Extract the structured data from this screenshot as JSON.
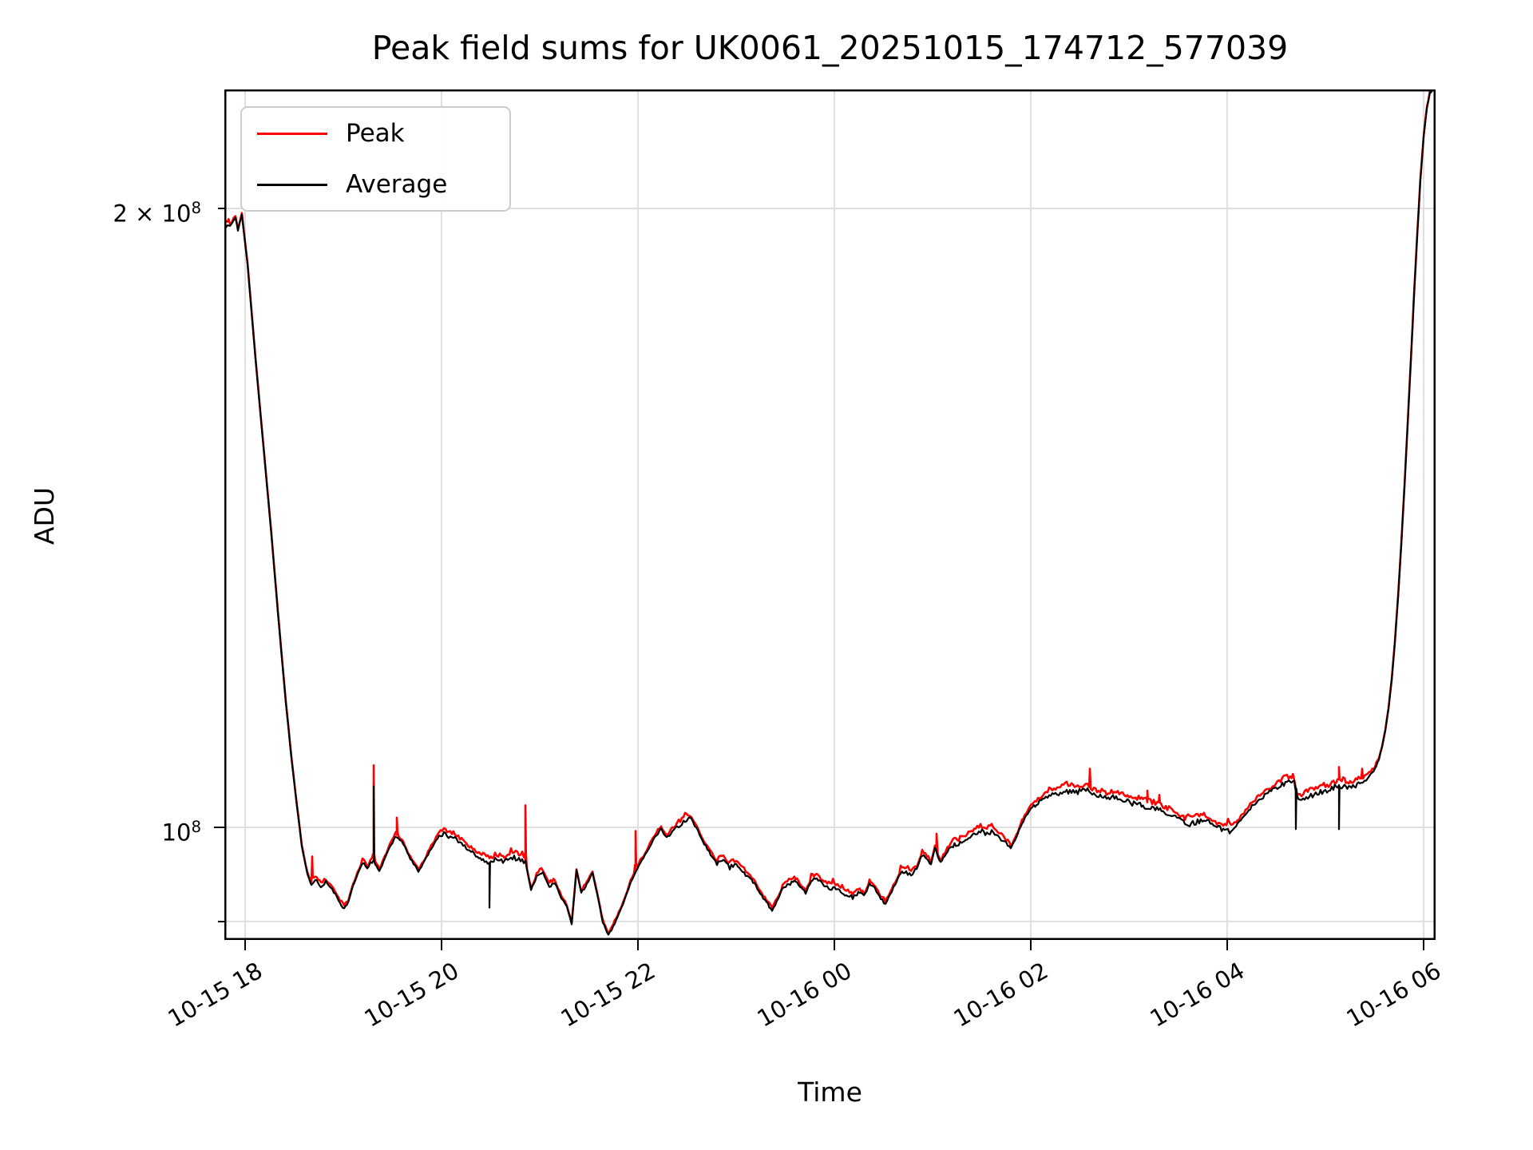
{
  "title": "Peak field sums for UK0061_20251015_174712_577039",
  "axes": {
    "xlabel": "Time",
    "ylabel": "ADU",
    "x_ticks": [
      "10-15 18",
      "10-15 20",
      "10-15 22",
      "10-16 00",
      "10-16 02",
      "10-16 04",
      "10-16 06"
    ],
    "y_ticks": [
      {
        "base": "2 × 10",
        "exp": "8",
        "value": 200000000.0
      },
      {
        "base": "10",
        "exp": "8",
        "value": 100000000.0
      }
    ],
    "y_minor_unlabeled": [
      90000000.0
    ]
  },
  "legend": {
    "items": [
      {
        "label": "Peak",
        "color": "#ff0000"
      },
      {
        "label": "Average",
        "color": "#000000"
      }
    ]
  },
  "colors": {
    "peak": "#ff0000",
    "average": "#000000",
    "grid": "#dcdcdc",
    "spine": "#000000",
    "legend_border": "#cccccc",
    "background": "#ffffff"
  },
  "chart_data": {
    "type": "line",
    "title": "Peak field sums for UK0061_20251015_174712_577039",
    "xlabel": "Time",
    "ylabel": "ADU",
    "yscale": "log",
    "x_unit": "hours since 2025-10-15 18:00",
    "xlim": [
      -0.211,
      12.12
    ],
    "ylim": [
      88000000.0,
      229000000.0
    ],
    "x_tick_hours": [
      0,
      2,
      4,
      6,
      8,
      10,
      12
    ],
    "grid": true,
    "legend_position": "upper left",
    "series": [
      {
        "name": "Peak",
        "color": "#ff0000",
        "relation": "average × ≈1.009 plus isolated spikes"
      },
      {
        "name": "Average",
        "color": "#000000"
      }
    ],
    "average_points": [
      [
        -0.211,
        196200000.0
      ],
      [
        -0.154,
        195900000.0
      ],
      [
        -0.098,
        198000000.0
      ],
      [
        -0.073,
        195200000.0
      ],
      [
        -0.033,
        198700000.0
      ],
      [
        0.024,
        188000000.0
      ],
      [
        0.106,
        169000000.0
      ],
      [
        0.187,
        153100000.0
      ],
      [
        0.268,
        138700000.0
      ],
      [
        0.35,
        124600000.0
      ],
      [
        0.415,
        115000000.0
      ],
      [
        0.472,
        108000000.0
      ],
      [
        0.528,
        102400000.0
      ],
      [
        0.577,
        97900000.0
      ],
      [
        0.634,
        94900000.0
      ],
      [
        0.675,
        93800000.0
      ],
      [
        0.715,
        94300000.0
      ],
      [
        0.772,
        93600000.0
      ],
      [
        0.821,
        94100000.0
      ],
      [
        0.87,
        93400000.0
      ],
      [
        0.919,
        92800000.0
      ],
      [
        0.967,
        91900000.0
      ],
      [
        1.008,
        91300000.0
      ],
      [
        1.049,
        91900000.0
      ],
      [
        1.098,
        93600000.0
      ],
      [
        1.146,
        94900000.0
      ],
      [
        1.195,
        96100000.0
      ],
      [
        1.244,
        95500000.0
      ],
      [
        1.276,
        96000000.0
      ],
      [
        1.309,
        96300000.0
      ],
      [
        1.366,
        95200000.0
      ],
      [
        1.423,
        96600000.0
      ],
      [
        1.472,
        97800000.0
      ],
      [
        1.528,
        98900000.0
      ],
      [
        1.61,
        98200000.0
      ],
      [
        1.667,
        96800000.0
      ],
      [
        1.715,
        96000000.0
      ],
      [
        1.764,
        95100000.0
      ],
      [
        1.829,
        96300000.0
      ],
      [
        1.894,
        97700000.0
      ],
      [
        1.959,
        98800000.0
      ],
      [
        2.024,
        99300000.0
      ],
      [
        2.089,
        98900000.0
      ],
      [
        2.154,
        98600000.0
      ],
      [
        2.22,
        98100000.0
      ],
      [
        2.301,
        97300000.0
      ],
      [
        2.366,
        96800000.0
      ],
      [
        2.423,
        96300000.0
      ],
      [
        2.488,
        96100000.0
      ],
      [
        2.545,
        96500000.0
      ],
      [
        2.626,
        96200000.0
      ],
      [
        2.707,
        96800000.0
      ],
      [
        2.789,
        96500000.0
      ],
      [
        2.854,
        96300000.0
      ],
      [
        2.911,
        93200000.0
      ],
      [
        2.968,
        94600000.0
      ],
      [
        3.033,
        95000000.0
      ],
      [
        3.098,
        93600000.0
      ],
      [
        3.154,
        94000000.0
      ],
      [
        3.22,
        92400000.0
      ],
      [
        3.276,
        91500000.0
      ],
      [
        3.325,
        89700000.0
      ],
      [
        3.374,
        95300000.0
      ],
      [
        3.423,
        92900000.0
      ],
      [
        3.48,
        93800000.0
      ],
      [
        3.537,
        95000000.0
      ],
      [
        3.585,
        92800000.0
      ],
      [
        3.642,
        89900000.0
      ],
      [
        3.699,
        88600000.0
      ],
      [
        3.748,
        89500000.0
      ],
      [
        3.805,
        90700000.0
      ],
      [
        3.862,
        92100000.0
      ],
      [
        3.927,
        94000000.0
      ],
      [
        3.992,
        95500000.0
      ],
      [
        4.057,
        96600000.0
      ],
      [
        4.122,
        97900000.0
      ],
      [
        4.187,
        99100000.0
      ],
      [
        4.236,
        99800000.0
      ],
      [
        4.293,
        98800000.0
      ],
      [
        4.35,
        99500000.0
      ],
      [
        4.415,
        100200000.0
      ],
      [
        4.48,
        100700000.0
      ],
      [
        4.545,
        100900000.0
      ],
      [
        4.61,
        99600000.0
      ],
      [
        4.675,
        98200000.0
      ],
      [
        4.74,
        97000000.0
      ],
      [
        4.805,
        96000000.0
      ],
      [
        4.87,
        96500000.0
      ],
      [
        4.935,
        95600000.0
      ],
      [
        5.0,
        96000000.0
      ],
      [
        5.065,
        95100000.0
      ],
      [
        5.13,
        94600000.0
      ],
      [
        5.187,
        93900000.0
      ],
      [
        5.244,
        92900000.0
      ],
      [
        5.309,
        91900000.0
      ],
      [
        5.366,
        91100000.0
      ],
      [
        5.415,
        92100000.0
      ],
      [
        5.472,
        93300000.0
      ],
      [
        5.537,
        93900000.0
      ],
      [
        5.593,
        94200000.0
      ],
      [
        5.65,
        93600000.0
      ],
      [
        5.707,
        92900000.0
      ],
      [
        5.764,
        94200000.0
      ],
      [
        5.821,
        94400000.0
      ],
      [
        5.878,
        93900000.0
      ],
      [
        5.943,
        93400000.0
      ],
      [
        6.0,
        93600000.0
      ],
      [
        6.065,
        93100000.0
      ],
      [
        6.122,
        92800000.0
      ],
      [
        6.187,
        92400000.0
      ],
      [
        6.244,
        92900000.0
      ],
      [
        6.301,
        92600000.0
      ],
      [
        6.358,
        93800000.0
      ],
      [
        6.415,
        93300000.0
      ],
      [
        6.472,
        92300000.0
      ],
      [
        6.52,
        91800000.0
      ],
      [
        6.569,
        92800000.0
      ],
      [
        6.618,
        93800000.0
      ],
      [
        6.675,
        95100000.0
      ],
      [
        6.732,
        95000000.0
      ],
      [
        6.781,
        94800000.0
      ],
      [
        6.837,
        95500000.0
      ],
      [
        6.894,
        97000000.0
      ],
      [
        6.943,
        96500000.0
      ],
      [
        6.984,
        96000000.0
      ],
      [
        7.024,
        97700000.0
      ],
      [
        7.081,
        96100000.0
      ],
      [
        7.138,
        97200000.0
      ],
      [
        7.195,
        97900000.0
      ],
      [
        7.252,
        98100000.0
      ],
      [
        7.309,
        98400000.0
      ],
      [
        7.366,
        98900000.0
      ],
      [
        7.423,
        99300000.0
      ],
      [
        7.488,
        99600000.0
      ],
      [
        7.553,
        99300000.0
      ],
      [
        7.618,
        99500000.0
      ],
      [
        7.683,
        98800000.0
      ],
      [
        7.748,
        98300000.0
      ],
      [
        7.797,
        97700000.0
      ],
      [
        7.854,
        98900000.0
      ],
      [
        7.911,
        100500000.0
      ],
      [
        7.967,
        101600000.0
      ],
      [
        8.016,
        102200000.0
      ],
      [
        8.073,
        102800000.0
      ],
      [
        8.138,
        103400000.0
      ],
      [
        8.203,
        103600000.0
      ],
      [
        8.268,
        103900000.0
      ],
      [
        8.333,
        104100000.0
      ],
      [
        8.398,
        104200000.0
      ],
      [
        8.463,
        104000000.0
      ],
      [
        8.528,
        104200000.0
      ],
      [
        8.577,
        104400000.0
      ],
      [
        8.642,
        103800000.0
      ],
      [
        8.707,
        103500000.0
      ],
      [
        8.772,
        103300000.0
      ],
      [
        8.837,
        103500000.0
      ],
      [
        8.902,
        103300000.0
      ],
      [
        8.967,
        103100000.0
      ],
      [
        9.033,
        102700000.0
      ],
      [
        9.098,
        102500000.0
      ],
      [
        9.187,
        102400000.0
      ],
      [
        9.252,
        102200000.0
      ],
      [
        9.317,
        102000000.0
      ],
      [
        9.39,
        101600000.0
      ],
      [
        9.455,
        101300000.0
      ],
      [
        9.52,
        100800000.0
      ],
      [
        9.585,
        100400000.0
      ],
      [
        9.65,
        100500000.0
      ],
      [
        9.715,
        100700000.0
      ],
      [
        9.78,
        100900000.0
      ],
      [
        9.846,
        100300000.0
      ],
      [
        9.911,
        99900000.0
      ],
      [
        9.976,
        99700000.0
      ],
      [
        10.041,
        99700000.0
      ],
      [
        10.106,
        100400000.0
      ],
      [
        10.171,
        101300000.0
      ],
      [
        10.236,
        102200000.0
      ],
      [
        10.301,
        102900000.0
      ],
      [
        10.366,
        103500000.0
      ],
      [
        10.431,
        104000000.0
      ],
      [
        10.496,
        104500000.0
      ],
      [
        10.561,
        104900000.0
      ],
      [
        10.626,
        105100000.0
      ],
      [
        10.683,
        105300000.0
      ],
      [
        10.724,
        103000000.0
      ],
      [
        10.772,
        103300000.0
      ],
      [
        10.837,
        103600000.0
      ],
      [
        10.902,
        103800000.0
      ],
      [
        10.967,
        104100000.0
      ],
      [
        11.033,
        104300000.0
      ],
      [
        11.081,
        104600000.0
      ],
      [
        11.138,
        104700000.0
      ],
      [
        11.195,
        104800000.0
      ],
      [
        11.252,
        104500000.0
      ],
      [
        11.309,
        104800000.0
      ],
      [
        11.366,
        105100000.0
      ],
      [
        11.415,
        105500000.0
      ],
      [
        11.463,
        106100000.0
      ],
      [
        11.504,
        106800000.0
      ],
      [
        11.545,
        107900000.0
      ],
      [
        11.577,
        109400000.0
      ],
      [
        11.61,
        111400000.0
      ],
      [
        11.642,
        114200000.0
      ],
      [
        11.675,
        117900000.0
      ],
      [
        11.707,
        123000000.0
      ],
      [
        11.74,
        129400000.0
      ],
      [
        11.772,
        137200000.0
      ],
      [
        11.805,
        146400000.0
      ],
      [
        11.837,
        157000000.0
      ],
      [
        11.87,
        168600000.0
      ],
      [
        11.902,
        181200000.0
      ],
      [
        11.935,
        194100000.0
      ],
      [
        11.967,
        206400000.0
      ],
      [
        12.0,
        216700000.0
      ],
      [
        12.033,
        223800000.0
      ],
      [
        12.065,
        227600000.0
      ],
      [
        12.089,
        228600000.0
      ],
      [
        12.114,
        229300000.0
      ]
    ],
    "peak_spikes": [
      [
        0.683,
        96800000.0
      ],
      [
        1.309,
        107200000.0
      ],
      [
        1.545,
        101100000.0
      ],
      [
        2.854,
        102500000.0
      ],
      [
        3.976,
        99600000.0
      ],
      [
        7.041,
        99300000.0
      ],
      [
        8.602,
        106800000.0
      ],
      [
        9.187,
        104200000.0
      ],
      [
        9.309,
        103700000.0
      ],
      [
        11.138,
        107000000.0
      ],
      [
        11.374,
        106800000.0
      ]
    ],
    "average_spikes": [
      [
        1.309,
        104700000.0
      ],
      [
        2.488,
        91400000.0
      ],
      [
        10.699,
        99800000.0
      ],
      [
        11.138,
        99800000.0
      ]
    ]
  }
}
